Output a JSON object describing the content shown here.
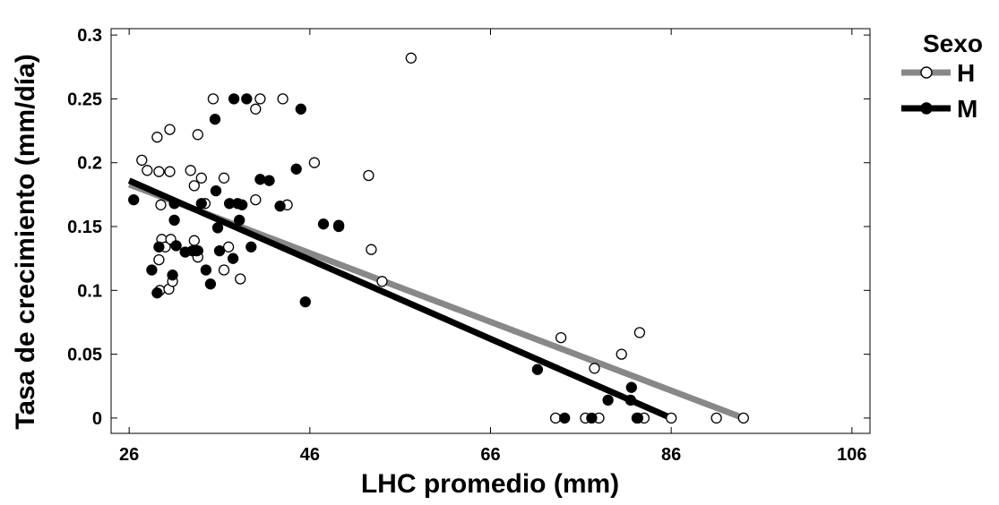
{
  "chart_data": {
    "type": "scatter",
    "title": "",
    "xlabel": "LHC promedio (mm)",
    "ylabel": "Tasa de crecimiento (mm/día)",
    "xlim": [
      24,
      108
    ],
    "ylim": [
      -0.012,
      0.305
    ],
    "x_ticks": [
      26,
      46,
      66,
      86,
      106
    ],
    "y_ticks": [
      0,
      0.05,
      0.1,
      0.15,
      0.2,
      0.25,
      0.3
    ],
    "x_tick_labels": [
      "26",
      "46",
      "66",
      "86",
      "106"
    ],
    "y_tick_labels": [
      "0",
      "0.05",
      "0.1",
      "0.15",
      "0.2",
      "0.25",
      "0.3"
    ],
    "grid": false,
    "legend": {
      "title": "Sexo",
      "position": "top-right",
      "entries": [
        {
          "label": "H",
          "color": "#888888",
          "marker": "open-circle"
        },
        {
          "label": "M",
          "color": "#000000",
          "marker": "filled-circle"
        }
      ]
    },
    "series": [
      {
        "name": "H",
        "color": "#888888",
        "marker": "open-circle",
        "points": [
          [
            27.4,
            0.202
          ],
          [
            28.0,
            0.194
          ],
          [
            29.1,
            0.22
          ],
          [
            29.5,
            0.167
          ],
          [
            29.3,
            0.193
          ],
          [
            30.5,
            0.226
          ],
          [
            30.5,
            0.193
          ],
          [
            29.6,
            0.14
          ],
          [
            30.0,
            0.134
          ],
          [
            29.3,
            0.124
          ],
          [
            30.6,
            0.14
          ],
          [
            29.4,
            0.1
          ],
          [
            30.4,
            0.101
          ],
          [
            30.8,
            0.107
          ],
          [
            32.8,
            0.194
          ],
          [
            33.2,
            0.182
          ],
          [
            33.6,
            0.222
          ],
          [
            34.0,
            0.188
          ],
          [
            33.2,
            0.139
          ],
          [
            33.6,
            0.131
          ],
          [
            33.6,
            0.126
          ],
          [
            34.4,
            0.168
          ],
          [
            35.3,
            0.25
          ],
          [
            36.5,
            0.188
          ],
          [
            37.0,
            0.134
          ],
          [
            36.5,
            0.116
          ],
          [
            38.3,
            0.109
          ],
          [
            40.0,
            0.242
          ],
          [
            40.5,
            0.25
          ],
          [
            40.0,
            0.171
          ],
          [
            43.0,
            0.25
          ],
          [
            43.5,
            0.167
          ],
          [
            46.5,
            0.2
          ],
          [
            52.5,
            0.19
          ],
          [
            52.8,
            0.132
          ],
          [
            54.0,
            0.107
          ],
          [
            57.2,
            0.282
          ],
          [
            73.2,
            0.0
          ],
          [
            73.8,
            0.063
          ],
          [
            76.5,
            0.0
          ],
          [
            78.0,
            0.0
          ],
          [
            77.5,
            0.039
          ],
          [
            80.5,
            0.05
          ],
          [
            82.5,
            0.067
          ],
          [
            83.0,
            0.0
          ],
          [
            86.0,
            0.0
          ],
          [
            91.0,
            0.0
          ],
          [
            94.0,
            0.0
          ]
        ]
      },
      {
        "name": "M",
        "color": "#000000",
        "marker": "filled-circle",
        "points": [
          [
            26.5,
            0.171
          ],
          [
            28.5,
            0.116
          ],
          [
            29.1,
            0.098
          ],
          [
            29.3,
            0.134
          ],
          [
            31.0,
            0.155
          ],
          [
            31.0,
            0.168
          ],
          [
            30.8,
            0.112
          ],
          [
            31.2,
            0.135
          ],
          [
            32.2,
            0.13
          ],
          [
            33.0,
            0.131
          ],
          [
            33.5,
            0.131
          ],
          [
            34.0,
            0.168
          ],
          [
            34.5,
            0.116
          ],
          [
            35.0,
            0.105
          ],
          [
            35.5,
            0.234
          ],
          [
            35.6,
            0.178
          ],
          [
            35.8,
            0.149
          ],
          [
            36.0,
            0.131
          ],
          [
            37.1,
            0.168
          ],
          [
            37.5,
            0.125
          ],
          [
            38.0,
            0.168
          ],
          [
            37.6,
            0.25
          ],
          [
            38.5,
            0.167
          ],
          [
            38.2,
            0.155
          ],
          [
            39.5,
            0.134
          ],
          [
            39.0,
            0.25
          ],
          [
            40.5,
            0.187
          ],
          [
            41.5,
            0.186
          ],
          [
            42.7,
            0.166
          ],
          [
            44.5,
            0.195
          ],
          [
            45.0,
            0.242
          ],
          [
            45.5,
            0.091
          ],
          [
            47.5,
            0.152
          ],
          [
            49.2,
            0.151
          ],
          [
            49.2,
            0.15
          ],
          [
            71.2,
            0.038
          ],
          [
            74.2,
            0.0
          ],
          [
            77.2,
            0.0
          ],
          [
            79.0,
            0.014
          ],
          [
            81.6,
            0.024
          ],
          [
            81.5,
            0.014
          ],
          [
            82.2,
            0.0
          ],
          [
            82.3,
            0.0
          ]
        ]
      }
    ],
    "fit_lines": [
      {
        "name": "H",
        "color": "#888888",
        "x": [
          26,
          94
        ],
        "y": [
          0.183,
          0.0
        ]
      },
      {
        "name": "M",
        "color": "#000000",
        "x": [
          26,
          86
        ],
        "y": [
          0.186,
          0.0
        ]
      }
    ]
  }
}
